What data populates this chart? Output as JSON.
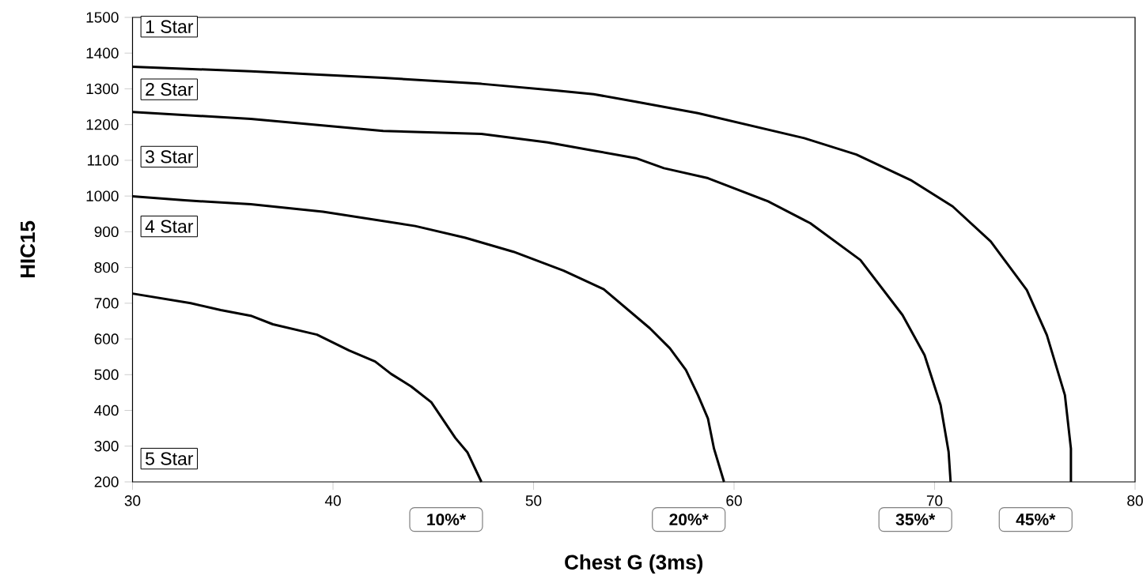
{
  "chart_data": {
    "type": "line",
    "xlabel": "Chest G (3ms)",
    "ylabel": "HIC15",
    "xlim": [
      30,
      80
    ],
    "xticks": [
      30,
      40,
      50,
      60,
      70,
      80
    ],
    "ylim": [
      200,
      1500
    ],
    "yticks": [
      200,
      300,
      400,
      500,
      600,
      700,
      800,
      900,
      1000,
      1100,
      1200,
      1300,
      1400,
      1500
    ],
    "grid": false,
    "legend": false,
    "marker": "none",
    "line_style": "solid",
    "series": [
      {
        "name": "10%*",
        "color": "#000000",
        "x": [
          30,
          32.9,
          34.4,
          35.9,
          37.0,
          39.2,
          40.8,
          42.1,
          42.9,
          43.9,
          44.9,
          46.1,
          46.7,
          47.4
        ],
        "values": [
          727,
          700,
          681,
          665,
          641,
          612,
          568,
          537,
          502,
          467,
          423,
          323,
          283,
          200
        ]
      },
      {
        "name": "20%*",
        "color": "#000000",
        "x": [
          30,
          32.6,
          35.9,
          39.5,
          44.1,
          46.6,
          49.0,
          51.5,
          53.5,
          55.8,
          56.8,
          57.6,
          58.2,
          58.7,
          59.0,
          59.5
        ],
        "values": [
          999,
          988,
          977,
          956,
          916,
          883,
          844,
          791,
          739,
          630,
          574,
          513,
          443,
          377,
          293,
          200
        ]
      },
      {
        "name": "35%*",
        "color": "#000000",
        "x": [
          30,
          35.9,
          42.5,
          47.4,
          50.7,
          53.0,
          55.1,
          56.5,
          58.7,
          61.7,
          63.8,
          66.3,
          68.4,
          69.5,
          70.3,
          70.7,
          70.8
        ],
        "values": [
          1235,
          1216,
          1182,
          1174,
          1150,
          1127,
          1106,
          1078,
          1050,
          985,
          924,
          821,
          667,
          555,
          415,
          284,
          200
        ]
      },
      {
        "name": "45%*",
        "color": "#000000",
        "x": [
          30,
          35.9,
          42.5,
          47.4,
          51.2,
          53.0,
          55.1,
          58.2,
          63.5,
          66.1,
          68.8,
          70.9,
          72.8,
          74.6,
          75.6,
          76.5,
          76.8,
          76.8
        ],
        "values": [
          1362,
          1349,
          1331,
          1314,
          1295,
          1285,
          1264,
          1232,
          1162,
          1116,
          1045,
          971,
          873,
          737,
          611,
          443,
          293,
          200
        ]
      }
    ],
    "annotations": [
      "1 Star",
      "2 Star",
      "3 Star",
      "4 Star",
      "5 Star"
    ]
  }
}
